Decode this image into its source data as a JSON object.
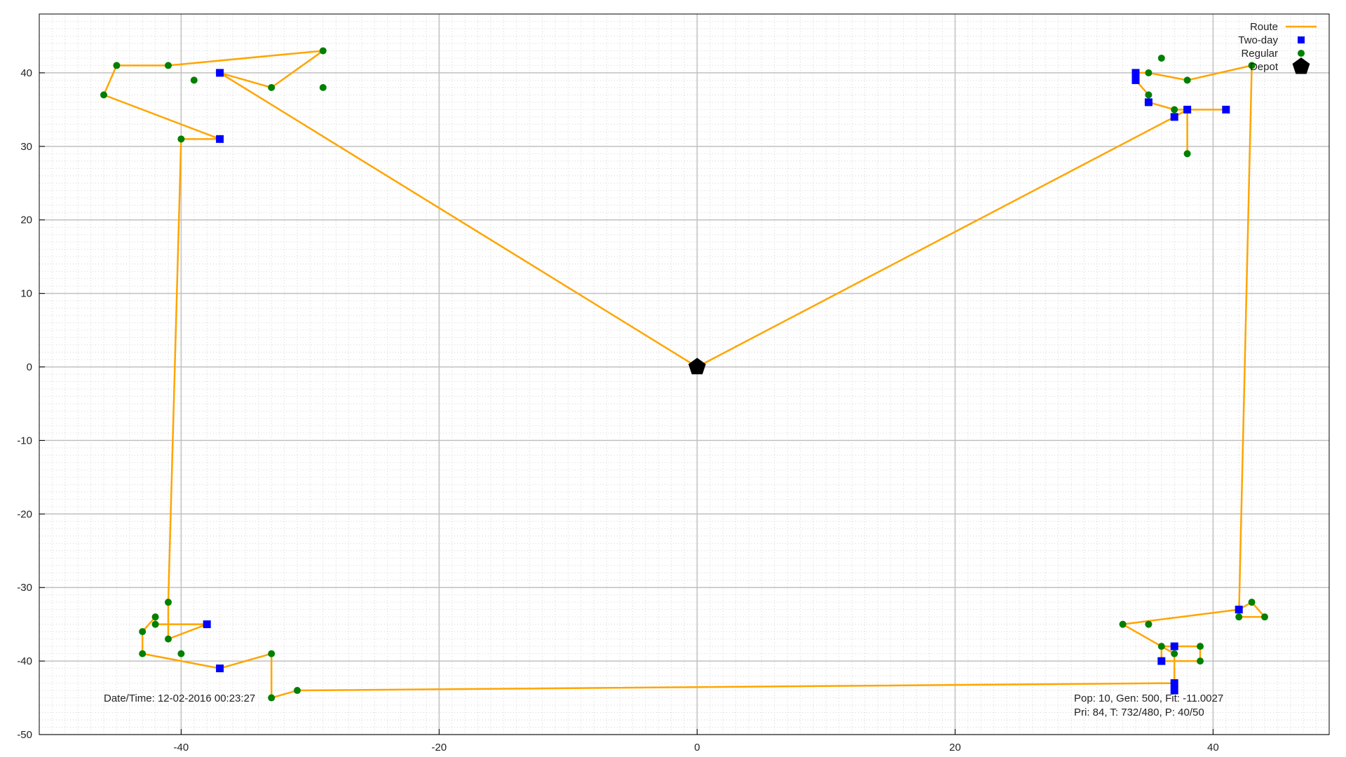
{
  "chart_data": {
    "type": "scatter",
    "title": "",
    "xlabel": "",
    "ylabel": "",
    "xlim": [
      -51,
      49
    ],
    "ylim": [
      -50,
      48
    ],
    "xticks": [
      -40,
      -20,
      0,
      20,
      40
    ],
    "yticks": [
      -50,
      -40,
      -30,
      -20,
      -10,
      0,
      10,
      20,
      30,
      40
    ],
    "xtick_labels": [
      "-40",
      "-20",
      "0",
      "20",
      "40"
    ],
    "ytick_labels": [
      "-50",
      "-40",
      "-30",
      "-20",
      "-10",
      "0",
      "10",
      "20",
      "30",
      "40"
    ],
    "grid": true,
    "legend_position": "top-right",
    "colors": {
      "route": "#ffa500",
      "two_day": "#0000ff",
      "regular": "#008000",
      "depot": "#000000",
      "grid_major": "#c0c0c0",
      "grid_minor": "#d6d6d6"
    },
    "series": [
      {
        "name": "Route",
        "kind": "line",
        "points": [
          [
            0,
            0
          ],
          [
            -37,
            40
          ],
          [
            -33,
            38
          ],
          [
            -29,
            43
          ],
          [
            -41,
            41
          ],
          [
            -45,
            41
          ],
          [
            -46,
            37
          ],
          [
            -37,
            31
          ],
          [
            -40,
            31
          ],
          [
            -41,
            -32
          ],
          [
            -41,
            -37
          ],
          [
            -38,
            -35
          ],
          [
            -42,
            -35
          ],
          [
            -42,
            -34
          ],
          [
            -43,
            -36
          ],
          [
            -43,
            -39
          ],
          [
            -37,
            -41
          ],
          [
            -33,
            -39
          ],
          [
            -33,
            -45
          ],
          [
            -31,
            -44
          ],
          [
            37,
            -43
          ],
          [
            37,
            -44
          ],
          [
            37,
            -43
          ],
          [
            37,
            -40
          ],
          [
            36,
            -40
          ],
          [
            36,
            -38
          ],
          [
            39,
            -38
          ],
          [
            39,
            -40
          ],
          [
            37,
            -40
          ],
          [
            37,
            -39
          ],
          [
            36,
            -38
          ],
          [
            33,
            -35
          ],
          [
            42,
            -33
          ],
          [
            43,
            -32
          ],
          [
            44,
            -34
          ],
          [
            42,
            -34
          ],
          [
            43,
            41
          ],
          [
            38,
            39
          ],
          [
            35,
            40
          ],
          [
            34,
            40
          ],
          [
            34,
            39
          ],
          [
            35,
            37
          ],
          [
            35,
            36
          ],
          [
            37,
            35
          ],
          [
            38,
            35
          ],
          [
            41,
            35
          ],
          [
            38,
            35
          ],
          [
            38,
            29
          ],
          [
            38,
            35
          ],
          [
            37,
            34
          ],
          [
            0,
            0
          ]
        ]
      },
      {
        "name": "Two-day",
        "kind": "square",
        "points": [
          [
            -37,
            40
          ],
          [
            -37,
            31
          ],
          [
            -38,
            -35
          ],
          [
            -37,
            -41
          ],
          [
            34,
            40
          ],
          [
            34,
            39
          ],
          [
            35,
            36
          ],
          [
            37,
            34
          ],
          [
            38,
            35
          ],
          [
            41,
            35
          ],
          [
            37,
            -38
          ],
          [
            36,
            -40
          ],
          [
            37,
            -43
          ],
          [
            37,
            -44
          ],
          [
            42,
            -33
          ]
        ]
      },
      {
        "name": "Regular",
        "kind": "circle",
        "points": [
          [
            -45,
            41
          ],
          [
            -41,
            41
          ],
          [
            -39,
            39
          ],
          [
            -33,
            38
          ],
          [
            -29,
            43
          ],
          [
            -29,
            38
          ],
          [
            -46,
            37
          ],
          [
            -40,
            31
          ],
          [
            -41,
            -32
          ],
          [
            -42,
            -34
          ],
          [
            -42,
            -35
          ],
          [
            -43,
            -36
          ],
          [
            -41,
            -37
          ],
          [
            -43,
            -39
          ],
          [
            -40,
            -39
          ],
          [
            -33,
            -39
          ],
          [
            -33,
            -45
          ],
          [
            -31,
            -44
          ],
          [
            36,
            42
          ],
          [
            35,
            40
          ],
          [
            38,
            39
          ],
          [
            43,
            41
          ],
          [
            35,
            37
          ],
          [
            37,
            35
          ],
          [
            38,
            29
          ],
          [
            43,
            -32
          ],
          [
            42,
            -34
          ],
          [
            44,
            -34
          ],
          [
            33,
            -35
          ],
          [
            35,
            -35
          ],
          [
            36,
            -38
          ],
          [
            37,
            -39
          ],
          [
            39,
            -38
          ],
          [
            39,
            -40
          ]
        ]
      },
      {
        "name": "Depot",
        "kind": "pentagon",
        "points": [
          [
            0,
            0
          ]
        ]
      }
    ],
    "annotations": [
      {
        "text": "Date/Time: 12-02-2016 00:23:27",
        "position": "bottom-left"
      },
      {
        "text": "Pop: 10, Gen: 500, Fit: -11.0027",
        "position": "bottom-right"
      },
      {
        "text": "Pri: 84, T: 732/480, P: 40/50",
        "position": "bottom-right"
      }
    ]
  }
}
